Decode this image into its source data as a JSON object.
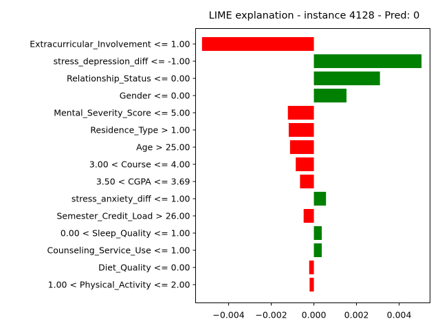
{
  "chart_data": {
    "type": "bar",
    "orientation": "horizontal",
    "title": "LIME explanation - instance 4128 - Pred: 0",
    "xlabel": "",
    "ylabel": "",
    "xlim": [
      -0.00555,
      0.00545
    ],
    "xticks": [
      -0.004,
      -0.002,
      0.0,
      0.002,
      0.004
    ],
    "xtick_labels": [
      "−0.004",
      "−0.002",
      "0.000",
      "0.002",
      "0.004"
    ],
    "grid": false,
    "colors": {
      "positive": "#008000",
      "negative": "#ff0000"
    },
    "categories": [
      "Extracurricular_Involvement <= 1.00",
      "stress_depression_diff <= -1.00",
      "Relationship_Status <= 0.00",
      "Gender <= 0.00",
      "Mental_Severity_Score <= 5.00",
      "Residence_Type > 1.00",
      "Age > 25.00",
      "3.00 < Course <= 4.00",
      "3.50 < CGPA <= 3.69",
      "stress_anxiety_diff <= 1.00",
      "Semester_Credit_Load > 26.00",
      "0.00 < Sleep_Quality <= 1.00",
      "Counseling_Service_Use <= 1.00",
      "Diet_Quality <= 0.00",
      "1.00 < Physical_Activity <= 2.00"
    ],
    "values": [
      -0.00525,
      0.00505,
      0.0031,
      0.00153,
      -0.00122,
      -0.00118,
      -0.00112,
      -0.00085,
      -0.00065,
      0.00057,
      -0.00048,
      0.00037,
      0.00037,
      -0.00022,
      -0.0002
    ]
  }
}
